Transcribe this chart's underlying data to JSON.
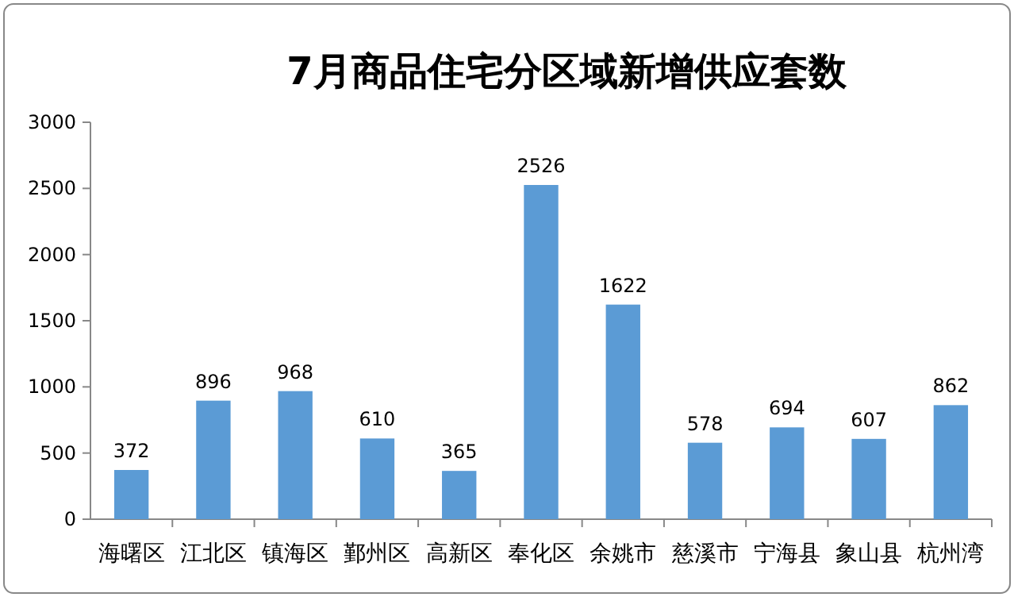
{
  "chart_data": {
    "type": "bar",
    "title": "7月商品住宅分区域新增供应套数",
    "categories": [
      "海曙区",
      "江北区",
      "镇海区",
      "鄞州区",
      "高新区",
      "奉化区",
      "余姚市",
      "慈溪市",
      "宁海县",
      "象山县",
      "杭州湾"
    ],
    "values": [
      372,
      896,
      968,
      610,
      365,
      2526,
      1622,
      578,
      694,
      607,
      862
    ],
    "color": "#5b9bd5",
    "ylim": [
      0,
      3000
    ],
    "yticks": [
      0,
      500,
      1000,
      1500,
      2000,
      2500,
      3000
    ],
    "data_labels": true,
    "grid": false
  }
}
